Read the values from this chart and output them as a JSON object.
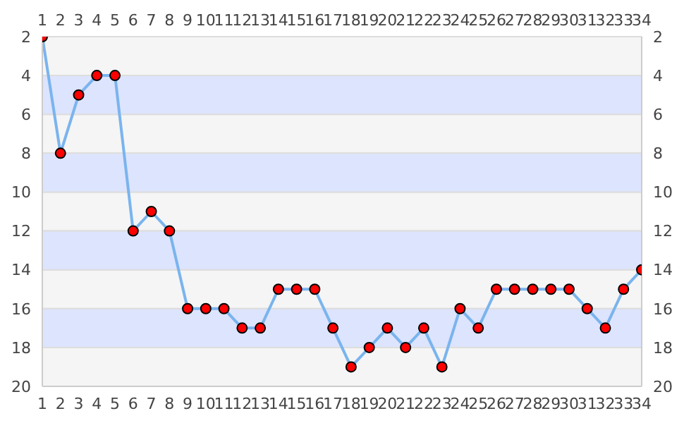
{
  "chart_data": {
    "type": "line",
    "x": [
      1,
      2,
      3,
      4,
      5,
      6,
      7,
      8,
      9,
      10,
      11,
      12,
      13,
      14,
      15,
      16,
      17,
      18,
      19,
      20,
      21,
      22,
      23,
      24,
      25,
      26,
      27,
      28,
      29,
      30,
      31,
      32,
      33,
      34
    ],
    "series": [
      {
        "color": "#7ab4ee",
        "values": [
          2,
          8,
          5,
          4,
          4,
          12,
          11,
          12,
          16,
          16,
          16,
          17,
          17,
          15,
          15,
          15,
          17,
          19,
          18,
          17,
          18,
          17,
          19,
          16,
          17,
          15,
          15,
          15,
          15,
          15,
          16,
          17,
          15,
          14
        ]
      }
    ],
    "xlim": [
      1,
      34
    ],
    "xticks": [
      1,
      2,
      3,
      4,
      5,
      6,
      7,
      8,
      9,
      10,
      11,
      12,
      13,
      14,
      15,
      16,
      17,
      18,
      19,
      20,
      21,
      22,
      23,
      24,
      25,
      26,
      27,
      28,
      29,
      30,
      31,
      32,
      33,
      34
    ],
    "x2lim": [
      1,
      34
    ],
    "x2ticks": [
      1,
      2,
      3,
      4,
      5,
      6,
      7,
      8,
      9,
      10,
      11,
      12,
      13,
      14,
      15,
      16,
      17,
      18,
      19,
      20,
      21,
      22,
      23,
      24,
      25,
      26,
      27,
      28,
      29,
      30,
      31,
      32,
      33,
      34
    ],
    "ylim": [
      20,
      2
    ],
    "yticks": [
      2,
      4,
      6,
      8,
      10,
      12,
      14,
      16,
      18,
      20
    ],
    "y2lim": [
      20,
      2
    ],
    "y2ticks": [
      2,
      4,
      6,
      8,
      10,
      12,
      14,
      16,
      18,
      20
    ],
    "bands": [
      {
        "axis": "y",
        "from": 4,
        "to": 6,
        "color": "#dde4fd"
      },
      {
        "axis": "y",
        "from": 8,
        "to": 10,
        "color": "#dde4fd"
      },
      {
        "axis": "y",
        "from": 12,
        "to": 14,
        "color": "#dde4fd"
      },
      {
        "axis": "y",
        "from": 16,
        "to": 18,
        "color": "#dde4fd"
      }
    ],
    "grid": "y",
    "marker": "circle",
    "line_style": "solid",
    "legend": false
  }
}
